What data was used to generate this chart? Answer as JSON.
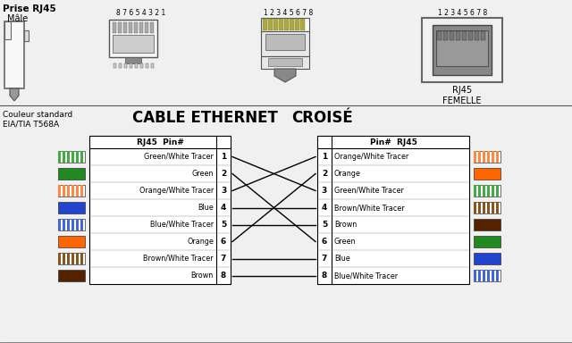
{
  "title_top": "Prise RJ45",
  "male_label": "Mâle",
  "pins_label2": "8 7 6 5 4 3 2 1",
  "pins_label3": "1 2 3 4 5 6 7 8",
  "pins_label4": "1 2 3 4 5 6 7 8",
  "femelle_label": "RJ45\nFEMELLE",
  "std_label": "Couleur standard\nEIA/TIA T568A",
  "cable_title_bold": "CABLE ETHERNET",
  "cable_title_normal": "CROISÉ",
  "left_header": "RJ45  Pin#",
  "right_header": "Pin#  RJ45",
  "left_pins": [
    {
      "num": 1,
      "label": "Green/White Tracer",
      "color": "#44aa44",
      "stripe": true,
      "stripe_color": "#ffffff"
    },
    {
      "num": 2,
      "label": "Green",
      "color": "#228822",
      "stripe": false
    },
    {
      "num": 3,
      "label": "Orange/White Tracer",
      "color": "#ff8844",
      "stripe": true,
      "stripe_color": "#ffffff"
    },
    {
      "num": 4,
      "label": "Blue",
      "color": "#2244cc",
      "stripe": false
    },
    {
      "num": 5,
      "label": "Blue/White Tracer",
      "color": "#4466dd",
      "stripe": true,
      "stripe_color": "#ffffff"
    },
    {
      "num": 6,
      "label": "Orange",
      "color": "#ff6600",
      "stripe": false
    },
    {
      "num": 7,
      "label": "Brown/White Tracer",
      "color": "#885522",
      "stripe": true,
      "stripe_color": "#ffffff"
    },
    {
      "num": 8,
      "label": "Brown",
      "color": "#552200",
      "stripe": false
    }
  ],
  "right_pins": [
    {
      "num": 1,
      "label": "Orange/White Tracer",
      "color": "#ff8844",
      "stripe": true,
      "stripe_color": "#ffffff"
    },
    {
      "num": 2,
      "label": "Orange",
      "color": "#ff6600",
      "stripe": false
    },
    {
      "num": 3,
      "label": "Green/White Tracer",
      "color": "#44aa44",
      "stripe": true,
      "stripe_color": "#ffffff"
    },
    {
      "num": 4,
      "label": "Brown/White Tracer",
      "color": "#885522",
      "stripe": true,
      "stripe_color": "#ffffff"
    },
    {
      "num": 5,
      "label": "Brown",
      "color": "#552200",
      "stripe": false
    },
    {
      "num": 6,
      "label": "Green",
      "color": "#228822",
      "stripe": false
    },
    {
      "num": 7,
      "label": "Blue",
      "color": "#2244cc",
      "stripe": false
    },
    {
      "num": 8,
      "label": "Blue/White Tracer",
      "color": "#4466dd",
      "stripe": true,
      "stripe_color": "#ffffff"
    }
  ],
  "crossover": [
    3,
    6,
    1,
    4,
    5,
    2,
    7,
    8
  ],
  "bg_color": "#f0f0f0",
  "white": "#ffffff",
  "black": "#000000",
  "gray_light": "#e0e0e0",
  "gray_mid": "#b0b0b0",
  "gray_dark": "#808080"
}
